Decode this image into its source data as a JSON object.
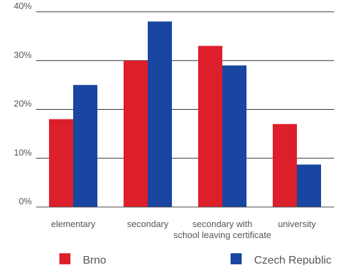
{
  "chart_data": {
    "type": "bar",
    "categories": [
      [
        "elementary"
      ],
      [
        "secondary"
      ],
      [
        "secondary with",
        "school leaving certificate"
      ],
      [
        "university"
      ]
    ],
    "series": [
      {
        "name": "Brno",
        "color": "#dd1f2b",
        "values": [
          18,
          30,
          33,
          17
        ]
      },
      {
        "name": "Czech Republic",
        "color": "#1846a0",
        "values": [
          25,
          38,
          29,
          8.7
        ]
      }
    ],
    "y_ticks": [
      "0%",
      "10%",
      "20%",
      "30%",
      "40%"
    ],
    "ylim": [
      0,
      40
    ],
    "grid": true,
    "legend_position": "bottom"
  }
}
